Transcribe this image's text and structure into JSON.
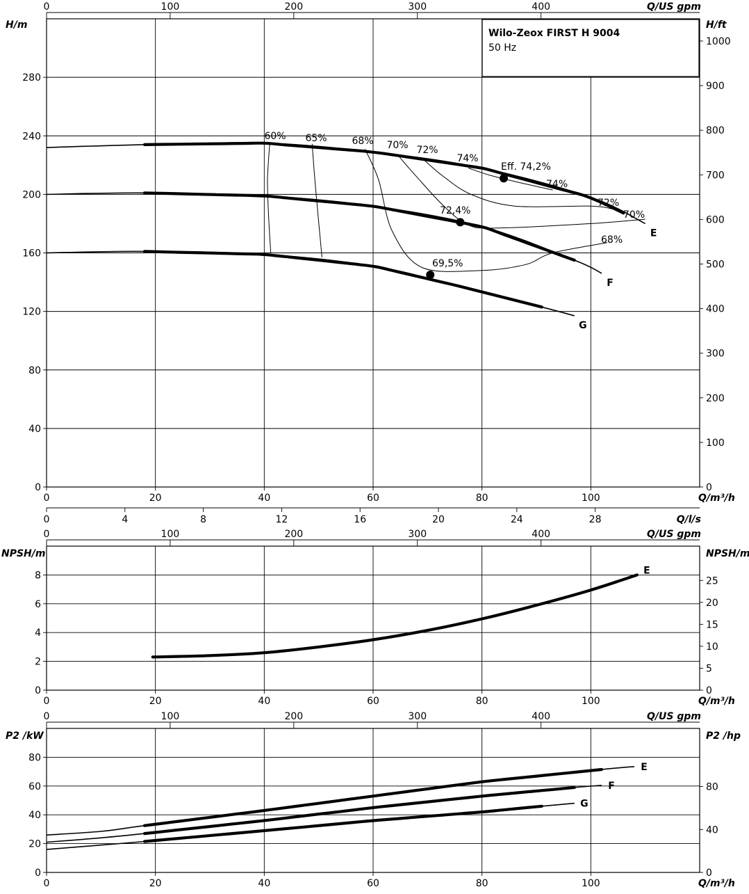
{
  "chart_data": [
    {
      "panel": "head",
      "type": "line",
      "title": "Wilo-Zeox FIRST H 9004",
      "subtitle": "50 Hz",
      "ylabel_left": "H/m",
      "ylabel_right": "H/ft",
      "xlabel": "Q/m³/h",
      "xlabel_top": "Q/US gpm",
      "xlabel_ls": "Q/l/s",
      "xlim": [
        0,
        120
      ],
      "ylim": [
        0,
        320
      ],
      "yticks_left": [
        "0",
        "40",
        "80",
        "120",
        "160",
        "200",
        "240",
        "280"
      ],
      "yticks_right": [
        "0",
        "100",
        "200",
        "300",
        "400",
        "500",
        "600",
        "700",
        "800",
        "900",
        "1000"
      ],
      "xticks": [
        "0",
        "20",
        "40",
        "60",
        "80",
        "100"
      ],
      "xticks_top": [
        "0",
        "100",
        "200",
        "300",
        "400"
      ],
      "xticks_ls": [
        "0",
        "4",
        "8",
        "12",
        "16",
        "20",
        "24",
        "28"
      ],
      "grid": true,
      "series": [
        {
          "name": "E",
          "x": [
            0,
            18,
            40,
            60,
            80,
            100,
            110
          ],
          "y": [
            232,
            234,
            235,
            229,
            218,
            198,
            180
          ],
          "thick_from": 18,
          "thick_to": 106
        },
        {
          "name": "F",
          "x": [
            0,
            18,
            40,
            60,
            80,
            97,
            102
          ],
          "y": [
            200,
            201,
            199,
            192,
            178,
            155,
            146
          ],
          "thick_from": 18,
          "thick_to": 97
        },
        {
          "name": "G",
          "x": [
            0,
            18,
            40,
            60,
            75,
            91,
            97
          ],
          "y": [
            160,
            161,
            159,
            151,
            138,
            123,
            117
          ],
          "thick_from": 18,
          "thick_to": 91
        }
      ],
      "efficiency_labels": [
        "60%",
        "65%",
        "68%",
        "70%",
        "72%",
        "74%",
        "Eff. 74,2%",
        "74%",
        "72%",
        "70%",
        "72,4%",
        "68%",
        "69,5%"
      ],
      "bep_points": [
        {
          "curve": "E",
          "x": 84,
          "y": 211
        },
        {
          "curve": "F",
          "x": 76,
          "y": 181
        },
        {
          "curve": "G",
          "x": 70.5,
          "y": 145
        }
      ]
    },
    {
      "panel": "npsh",
      "type": "line",
      "ylabel_left": "NPSH/m",
      "ylabel_right": "NPSH/m",
      "xlabel": "Q/m³/h",
      "xlabel_top": "Q/US gpm",
      "xlim": [
        0,
        120
      ],
      "ylim": [
        0,
        10
      ],
      "yticks_left": [
        "0",
        "2",
        "4",
        "6",
        "8"
      ],
      "yticks_right": [
        "0",
        "5",
        "10",
        "15",
        "20",
        "25"
      ],
      "xticks": [
        "0",
        "20",
        "40",
        "60",
        "80",
        "100"
      ],
      "xticks_top": [
        "0",
        "100",
        "200",
        "300",
        "400"
      ],
      "grid": true,
      "series": [
        {
          "name": "E",
          "x": [
            19.5,
            30,
            40,
            50,
            60,
            70,
            80,
            90,
            100,
            108.5
          ],
          "y": [
            2.3,
            2.4,
            2.6,
            3.0,
            3.5,
            4.15,
            4.95,
            5.9,
            6.95,
            8.0
          ]
        }
      ]
    },
    {
      "panel": "power",
      "type": "line",
      "ylabel_left": "P2 /kW",
      "ylabel_right": "P2 /hp",
      "xlabel": "Q/m³/h",
      "xlabel_top": "Q/US gpm",
      "xlim": [
        0,
        120
      ],
      "ylim": [
        0,
        100
      ],
      "yticks_left": [
        "0",
        "20",
        "40",
        "60",
        "80"
      ],
      "yticks_right": [
        "0",
        "40",
        "80"
      ],
      "xticks": [
        "0",
        "20",
        "40",
        "60",
        "80",
        "100"
      ],
      "xticks_top": [
        "0",
        "100",
        "200",
        "300",
        "400"
      ],
      "grid": true,
      "series": [
        {
          "name": "E",
          "x": [
            0,
            10,
            18,
            40,
            60,
            80,
            102,
            108
          ],
          "y": [
            26,
            28.5,
            32.5,
            43,
            53,
            63,
            71.5,
            73.5
          ],
          "thick_from": 18,
          "thick_to": 102
        },
        {
          "name": "F",
          "x": [
            0,
            10,
            18,
            40,
            60,
            80,
            97,
            102
          ],
          "y": [
            21,
            24,
            27,
            36,
            45,
            53,
            59,
            60.5
          ],
          "thick_from": 18,
          "thick_to": 97
        },
        {
          "name": "G",
          "x": [
            0,
            10,
            18,
            40,
            60,
            80,
            91,
            97
          ],
          "y": [
            16,
            19,
            21.5,
            29,
            36,
            42,
            46,
            48
          ],
          "thick_from": 18,
          "thick_to": 91
        }
      ]
    }
  ]
}
